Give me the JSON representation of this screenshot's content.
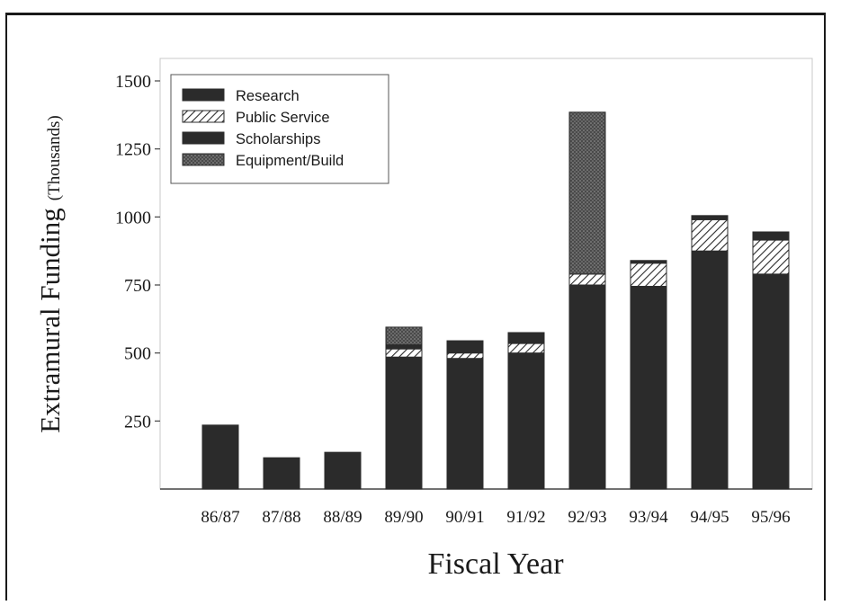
{
  "chart_data": {
    "type": "bar",
    "stacked": true,
    "title": "",
    "xlabel": "Fiscal Year",
    "ylabel_main": "Extramural Funding",
    "ylabel_unit": "(Thousands)",
    "ylim": [
      0,
      1600
    ],
    "yticks": [
      250,
      500,
      750,
      1000,
      1250,
      1500
    ],
    "ytick_labels": [
      "250",
      "500",
      "750",
      "1000",
      "1250",
      "1500"
    ],
    "grid": false,
    "legend_position": "top-left",
    "categories": [
      "86/87",
      "87/88",
      "88/89",
      "89/90",
      "90/91",
      "91/92",
      "92/93",
      "93/94",
      "94/95",
      "95/96"
    ],
    "series": [
      {
        "name": "Research",
        "pattern": "solid",
        "color": "#2b2b2b",
        "values": [
          235,
          115,
          135,
          485,
          480,
          500,
          750,
          745,
          875,
          790
        ]
      },
      {
        "name": "Public Service",
        "pattern": "hatch",
        "color": "#2b2b2b",
        "values": [
          0,
          0,
          0,
          30,
          20,
          35,
          40,
          85,
          115,
          125
        ]
      },
      {
        "name": "Scholarships",
        "pattern": "solid",
        "color": "#2b2b2b",
        "values": [
          0,
          0,
          0,
          15,
          45,
          40,
          0,
          10,
          15,
          30
        ]
      },
      {
        "name": "Equipment/Build",
        "pattern": "stipple",
        "color": "#555555",
        "values": [
          0,
          0,
          0,
          65,
          0,
          0,
          595,
          0,
          0,
          0
        ]
      }
    ]
  }
}
